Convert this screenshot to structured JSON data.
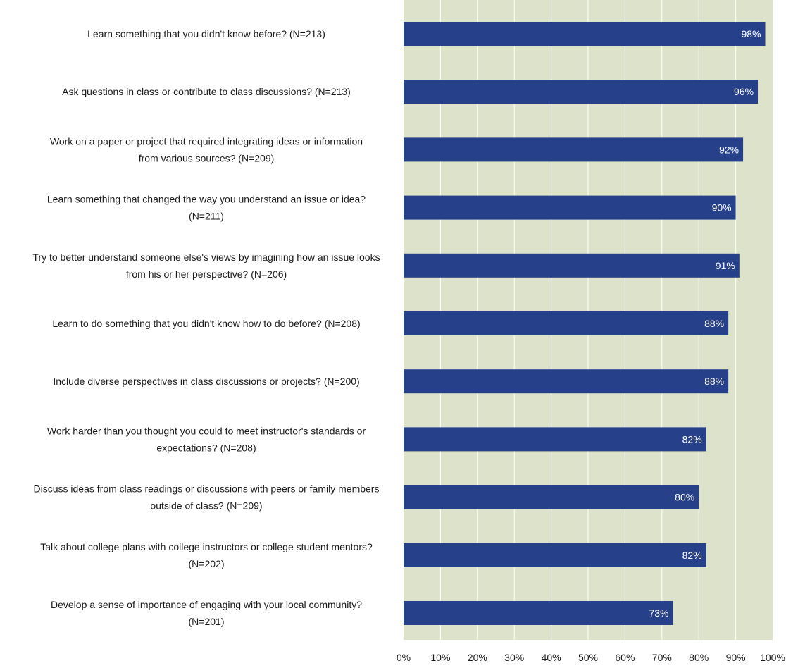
{
  "chart_data": {
    "type": "bar",
    "orientation": "horizontal",
    "categories": [
      [
        "Learn something that you didn't know before? (N=213)"
      ],
      [
        "Ask questions in class or contribute to class discussions? (N=213)"
      ],
      [
        "Work on a paper or project that required integrating ideas or information",
        "from various sources? (N=209)"
      ],
      [
        "Learn something that changed the way you understand an issue or idea?",
        "(N=211)"
      ],
      [
        "Try to better understand someone else's views by imagining how an issue looks",
        "from his or her perspective? (N=206)"
      ],
      [
        "Learn to do something that you didn't know how to do before? (N=208)"
      ],
      [
        "Include diverse perspectives in class discussions or projects? (N=200)"
      ],
      [
        "Work harder than you thought you could to meet instructor's standards or",
        "expectations? (N=208)"
      ],
      [
        "Discuss ideas from class readings or discussions with peers or family members",
        "outside of class? (N=209)"
      ],
      [
        "Talk about college plans with college instructors or college student mentors?",
        "(N=202)"
      ],
      [
        "Develop a sense of importance of engaging with your local community?",
        "(N=201)"
      ]
    ],
    "values": [
      98,
      96,
      92,
      90,
      91,
      88,
      88,
      82,
      80,
      82,
      73
    ],
    "data_labels": [
      "98%",
      "96%",
      "92%",
      "90%",
      "91%",
      "88%",
      "88%",
      "82%",
      "80%",
      "82%",
      "73%"
    ],
    "x_ticks": [
      "0%",
      "10%",
      "20%",
      "30%",
      "40%",
      "50%",
      "60%",
      "70%",
      "80%",
      "90%",
      "100%"
    ],
    "xlim": [
      0,
      100
    ],
    "grid": true,
    "legend": "none",
    "colors": {
      "bar": "#26408A",
      "plot_bg": "#DDE3CA",
      "grid": "#FFFFFF"
    }
  }
}
